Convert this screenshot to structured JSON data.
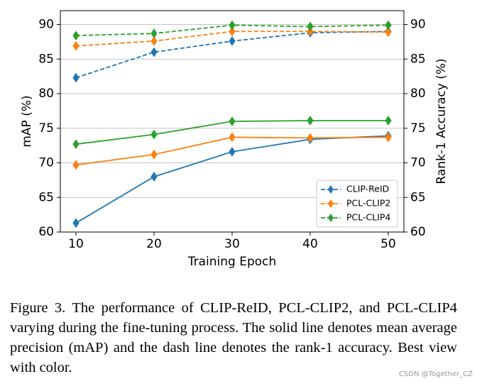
{
  "chart_data": {
    "type": "line",
    "x": [
      10,
      20,
      30,
      40,
      50
    ],
    "xlabel": "Training Epoch",
    "ylabel": "mAP (%)",
    "y2label": "Rank-1 Accuracy (%)",
    "xlim": [
      8,
      52
    ],
    "xticks": [
      10,
      20,
      30,
      40,
      50
    ],
    "ylim": [
      60,
      92
    ],
    "yticks": [
      60,
      65,
      70,
      75,
      80,
      85,
      90
    ],
    "y2lim": [
      60,
      92
    ],
    "y2ticks": [
      60,
      65,
      70,
      75,
      80,
      85,
      90
    ],
    "grid": true,
    "legend": "lower right",
    "marker": "diamond",
    "series": [
      {
        "name": "CLIP-ReID",
        "color": "#1f77b4",
        "linestyle": "solid",
        "values": [
          61.3,
          68.0,
          71.6,
          73.4,
          73.9
        ]
      },
      {
        "name": "PCL-CLIP2",
        "color": "#ff7f0e",
        "linestyle": "solid",
        "values": [
          69.7,
          71.2,
          73.7,
          73.6,
          73.7
        ]
      },
      {
        "name": "PCL-CLIP4",
        "color": "#2ca02c",
        "linestyle": "solid",
        "values": [
          72.7,
          74.1,
          76.0,
          76.1,
          76.1
        ]
      },
      {
        "name": "CLIP-ReID",
        "color": "#1f77b4",
        "linestyle": "dashed",
        "axis": "y2",
        "values": [
          82.3,
          86.0,
          87.6,
          88.8,
          89.0
        ]
      },
      {
        "name": "PCL-CLIP2",
        "color": "#ff7f0e",
        "linestyle": "dashed",
        "axis": "y2",
        "values": [
          86.9,
          87.6,
          89.0,
          89.0,
          88.9
        ]
      },
      {
        "name": "PCL-CLIP4",
        "color": "#2ca02c",
        "linestyle": "dashed",
        "axis": "y2",
        "values": [
          88.4,
          88.7,
          89.9,
          89.7,
          89.9
        ]
      }
    ]
  },
  "caption": "Figure 3. The performance of CLIP-ReID, PCL-CLIP2, and PCL-CLIP4 varying during the fine-tuning process. The solid line denotes mean average precision (mAP) and the dash line denotes the rank-1 accuracy. Best view with color.",
  "watermark": "CSDN @Together_CZ"
}
